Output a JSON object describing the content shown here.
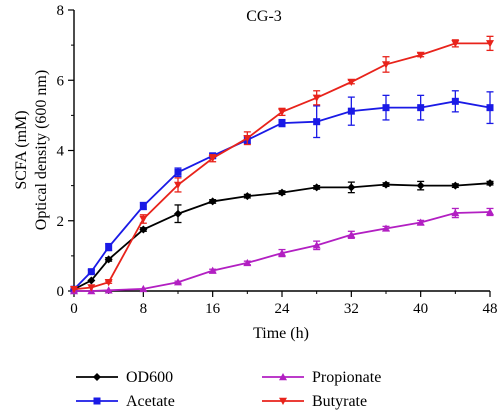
{
  "chart_data": {
    "type": "line",
    "title": "CG-3",
    "xlabel": "Time (h)",
    "ylabel": [
      "SCFA (mM)",
      "Optical density (600 nm)"
    ],
    "xlim": [
      0,
      48
    ],
    "ylim": [
      0,
      8
    ],
    "xticks": [
      0,
      8,
      16,
      24,
      32,
      40,
      48
    ],
    "yticks": [
      0,
      2,
      4,
      6,
      8
    ],
    "grid": false,
    "legend_position": "bottom",
    "series": [
      {
        "name": "OD600",
        "color": "#000000",
        "marker": "diamond",
        "x": [
          0,
          2,
          4,
          8,
          12,
          16,
          20,
          24,
          28,
          32,
          36,
          40,
          44,
          48
        ],
        "y": [
          0.05,
          0.3,
          0.9,
          1.75,
          2.2,
          2.55,
          2.7,
          2.8,
          2.95,
          2.95,
          3.03,
          3.0,
          3.0,
          3.07
        ],
        "err": [
          0,
          0,
          0.05,
          0.05,
          0.25,
          0.05,
          0.05,
          0.05,
          0.05,
          0.15,
          0.05,
          0.12,
          0.05,
          0.05
        ]
      },
      {
        "name": "Acetate",
        "color": "#1a1ae6",
        "marker": "square",
        "x": [
          0,
          2,
          4,
          8,
          12,
          16,
          20,
          24,
          28,
          32,
          36,
          40,
          44,
          48
        ],
        "y": [
          0.05,
          0.55,
          1.25,
          2.42,
          3.38,
          3.85,
          4.3,
          4.78,
          4.82,
          5.12,
          5.22,
          5.22,
          5.4,
          5.22
        ],
        "err": [
          0,
          0.05,
          0.1,
          0.1,
          0.12,
          0.06,
          0.1,
          0.1,
          0.45,
          0.4,
          0.35,
          0.35,
          0.3,
          0.45
        ]
      },
      {
        "name": "Propionate",
        "color": "#b21fc2",
        "marker": "triangle-up",
        "x": [
          0,
          2,
          4,
          8,
          12,
          16,
          20,
          24,
          28,
          32,
          36,
          40,
          44,
          48
        ],
        "y": [
          0.0,
          0.0,
          0.02,
          0.06,
          0.25,
          0.58,
          0.8,
          1.08,
          1.3,
          1.6,
          1.78,
          1.95,
          2.22,
          2.25
        ],
        "err": [
          0,
          0,
          0,
          0,
          0.03,
          0.04,
          0.05,
          0.1,
          0.12,
          0.1,
          0.06,
          0.06,
          0.13,
          0.1
        ]
      },
      {
        "name": "Butyrate",
        "color": "#e8231b",
        "marker": "triangle-down",
        "x": [
          0,
          2,
          4,
          8,
          12,
          16,
          20,
          24,
          28,
          32,
          36,
          40,
          44,
          48
        ],
        "y": [
          0.05,
          0.1,
          0.25,
          2.05,
          3.02,
          3.78,
          4.35,
          5.1,
          5.5,
          5.95,
          6.45,
          6.72,
          7.05,
          7.05
        ],
        "err": [
          0,
          0,
          0.03,
          0.12,
          0.2,
          0.1,
          0.18,
          0.1,
          0.2,
          0.05,
          0.22,
          0.05,
          0.1,
          0.2
        ]
      }
    ],
    "legend": [
      {
        "label": "OD600",
        "series": 0
      },
      {
        "label": "Propionate",
        "series": 2
      },
      {
        "label": "Acetate",
        "series": 1
      },
      {
        "label": "Butyrate",
        "series": 3
      }
    ]
  }
}
